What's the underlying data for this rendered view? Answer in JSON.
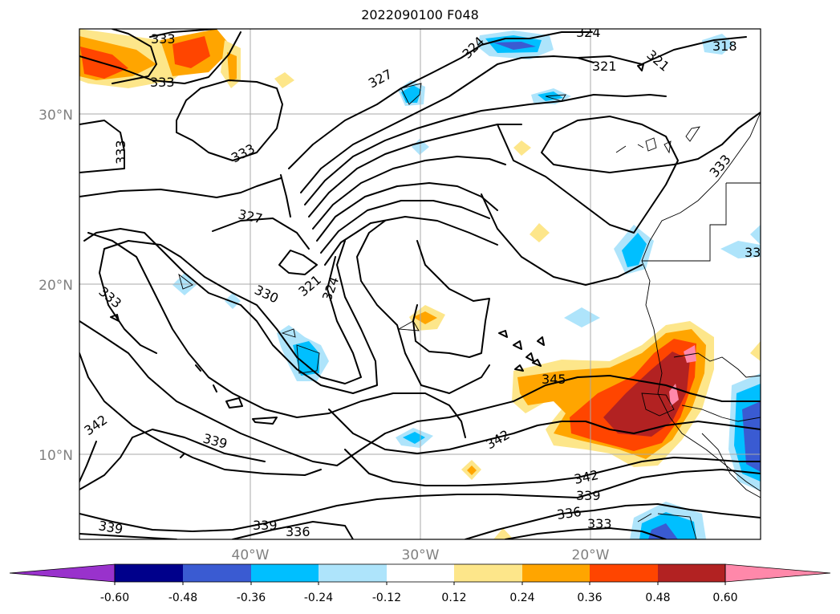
{
  "title": "2022090100 F048",
  "map": {
    "lat_labels": [
      "30°N",
      "20°N",
      "10°N"
    ],
    "lon_labels": [
      "40°W",
      "30°W",
      "20°W"
    ],
    "contour_labels": [
      "333",
      "333",
      "333",
      "333",
      "327",
      "324",
      "324",
      "321",
      "321",
      "318",
      "333",
      "327",
      "330",
      "321",
      "324",
      "333",
      "345",
      "342",
      "342",
      "339",
      "342",
      "339",
      "336",
      "333",
      "339",
      "339",
      "336",
      "33"
    ]
  },
  "colorbar": {
    "ticks": [
      "-0.60",
      "-0.48",
      "-0.36",
      "-0.24",
      "-0.12",
      "0.12",
      "0.24",
      "0.36",
      "0.48",
      "0.60"
    ],
    "colors": [
      "#9932cc",
      "#00008b",
      "#3a5bd2",
      "#00bfff",
      "#aee4fb",
      "#ffffff",
      "#fde68a",
      "#ffa500",
      "#ff4500",
      "#b22222",
      "#ff88aa"
    ]
  }
}
